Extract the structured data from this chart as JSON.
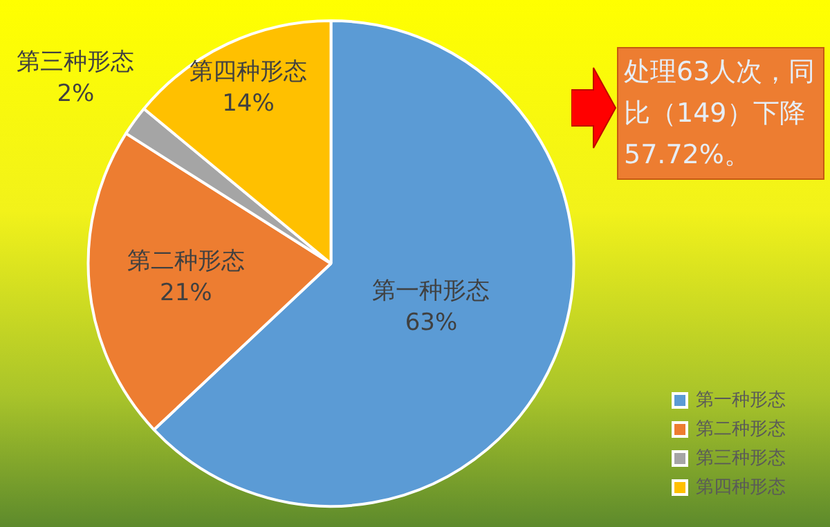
{
  "chart_data": {
    "type": "pie",
    "categories": [
      "第一种形态",
      "第二种形态",
      "第三种形态",
      "第四种形态"
    ],
    "values": [
      63,
      21,
      2,
      14
    ],
    "colors": [
      "#5b9bd5",
      "#ed7d31",
      "#a5a5a5",
      "#ffc000"
    ],
    "value_labels": [
      "63%",
      "21%",
      "2%",
      "14%"
    ],
    "legend": "bottom right",
    "annotations": [
      "处理63人次，同比（149）下降57.72%。"
    ]
  }
}
